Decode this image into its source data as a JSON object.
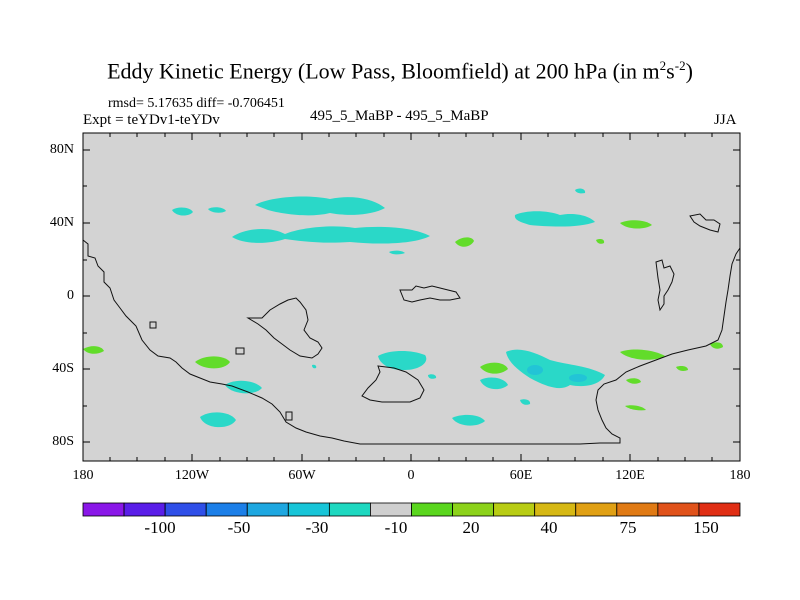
{
  "figure": {
    "title_main": "Eddy Kinetic Energy (Low Pass, Bloomfield) at 200 hPa (in m",
    "title_sup1": "2",
    "title_mid": "s",
    "title_sup2": "-2",
    "title_end": ")",
    "rmsd_line": "rmsd= 5.17635 diff= -0.706451",
    "expt_line": "Expt = teYDv1-teYDv",
    "center_label": "495_5_MaBP - 495_5_MaBP",
    "season": "JJA"
  },
  "axes": {
    "lat_labels": [
      "80N",
      "40N",
      "0",
      "40S",
      "80S"
    ],
    "lon_labels": [
      "180",
      "120W",
      "60W",
      "0",
      "60E",
      "120E",
      "180"
    ]
  },
  "colorbar": {
    "labels": [
      "-100",
      "-50",
      "-30",
      "-10",
      "20",
      "40",
      "75",
      "150"
    ],
    "colors": [
      "#8a17e8",
      "#5a1ee8",
      "#2f4fe8",
      "#1c7fe8",
      "#1ea7e0",
      "#17c5d8",
      "#1ed8c0",
      "#cfcfcf",
      "#5ad61e",
      "#8cd21a",
      "#b8cc14",
      "#d6b814",
      "#e0a014",
      "#e07a14",
      "#e0521a",
      "#e02e14"
    ]
  },
  "map": {
    "background": "#d3d3d3",
    "anomaly_negative": "#2ad8c8",
    "anomaly_positive": "#62dc2a",
    "anomaly_strong_negative": "#22c4d6",
    "anomaly_orange": "#e0a014"
  }
}
